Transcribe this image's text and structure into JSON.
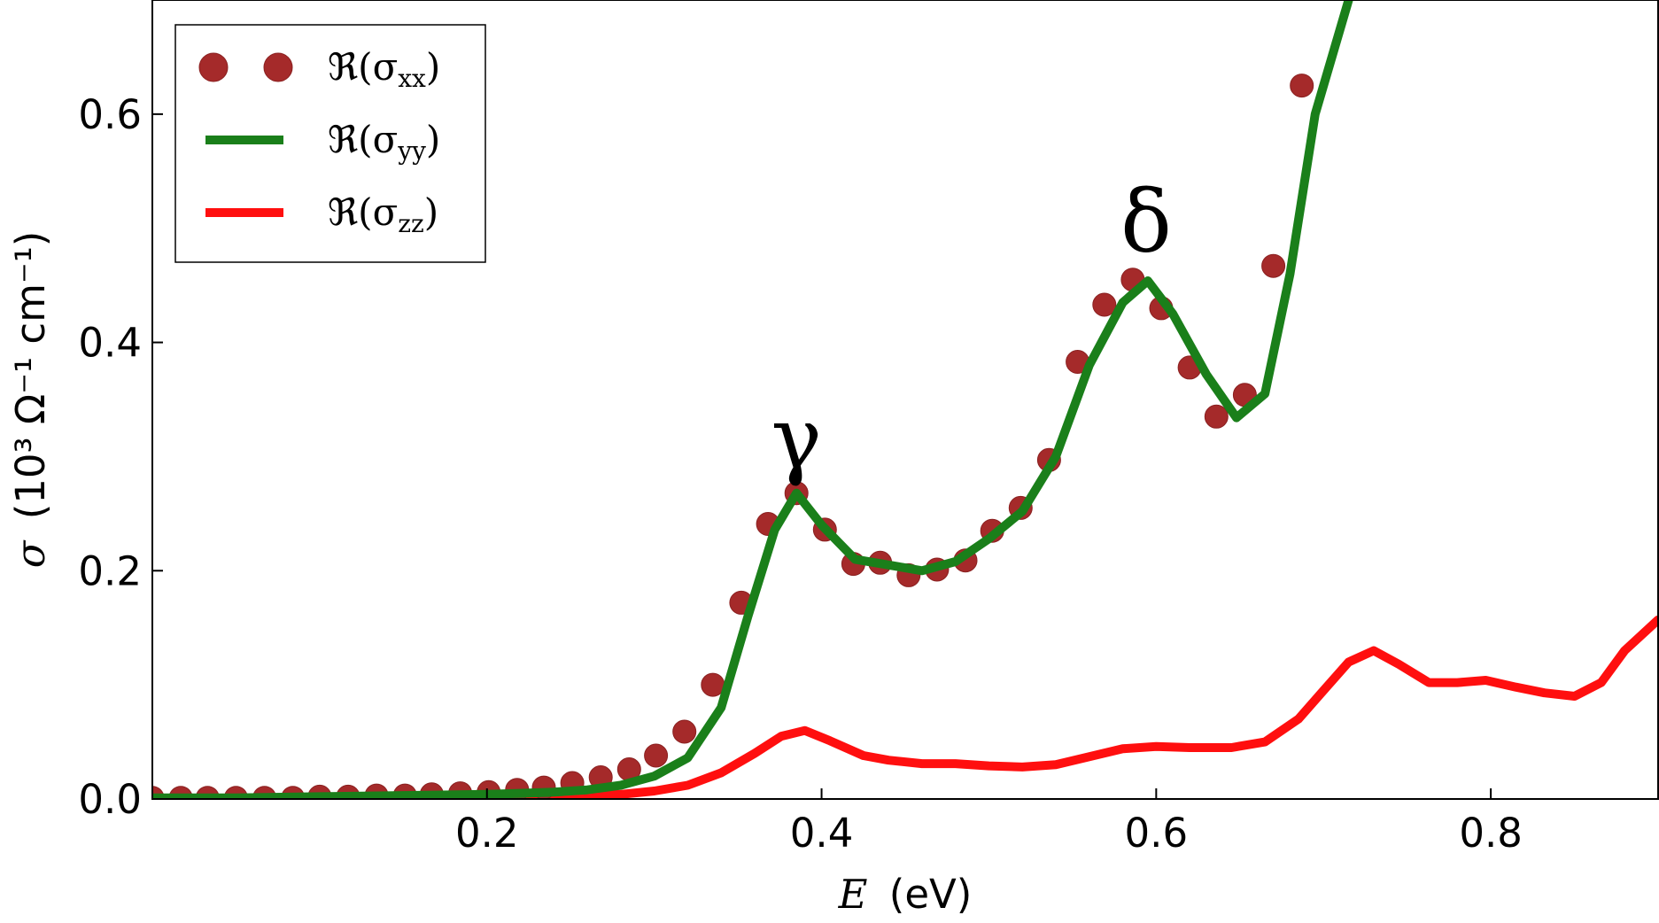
{
  "chart_data": {
    "type": "line",
    "title": "",
    "xlabel": {
      "symbol": "E",
      "unit": "(eV)"
    },
    "ylabel": {
      "symbol": "σ",
      "unit": "(10³ Ω⁻¹ cm⁻¹)"
    },
    "xlim": [
      0.0,
      0.9
    ],
    "ylim": [
      0.0,
      0.7
    ],
    "x_ticks": [
      {
        "value": 0.2,
        "label": "0.2"
      },
      {
        "value": 0.4,
        "label": "0.4"
      },
      {
        "value": 0.6,
        "label": "0.6"
      },
      {
        "value": 0.8,
        "label": "0.8"
      }
    ],
    "y_ticks": [
      {
        "value": 0.0,
        "label": "0.0"
      },
      {
        "value": 0.2,
        "label": "0.2"
      },
      {
        "value": 0.4,
        "label": "0.4"
      },
      {
        "value": 0.6,
        "label": "0.6"
      }
    ],
    "grid": false,
    "legend_position": "top-left",
    "series": [
      {
        "name": "ℜ(σxx)",
        "legend_main": "ℜ(σ",
        "legend_sub": "xx",
        "legend_close": ")",
        "style": "markers",
        "color": "#a52a2a",
        "x": [
          0.0,
          0.017,
          0.033,
          0.05,
          0.067,
          0.084,
          0.1,
          0.117,
          0.134,
          0.151,
          0.167,
          0.184,
          0.201,
          0.218,
          0.234,
          0.251,
          0.268,
          0.285,
          0.301,
          0.318,
          0.335,
          0.352,
          0.368,
          0.385,
          0.402,
          0.419,
          0.435,
          0.452,
          0.469,
          0.486,
          0.502,
          0.519,
          0.536,
          0.553,
          0.569,
          0.586,
          0.603,
          0.62,
          0.636,
          0.653,
          0.67,
          0.687
        ],
        "y": [
          0.001,
          0.001,
          0.001,
          0.001,
          0.001,
          0.001,
          0.002,
          0.002,
          0.003,
          0.003,
          0.004,
          0.005,
          0.006,
          0.008,
          0.01,
          0.014,
          0.019,
          0.026,
          0.038,
          0.059,
          0.1,
          0.172,
          0.241,
          0.268,
          0.236,
          0.206,
          0.207,
          0.196,
          0.201,
          0.209,
          0.235,
          0.255,
          0.297,
          0.383,
          0.433,
          0.455,
          0.43,
          0.378,
          0.335,
          0.354,
          0.467,
          0.625
        ]
      },
      {
        "name": "ℜ(σyy)",
        "legend_main": "ℜ(σ",
        "legend_sub": "yy",
        "legend_close": ")",
        "style": "line",
        "color": "#1a7f1a",
        "x": [
          0.0,
          0.05,
          0.1,
          0.15,
          0.2,
          0.22,
          0.24,
          0.26,
          0.28,
          0.3,
          0.32,
          0.34,
          0.356,
          0.372,
          0.385,
          0.4,
          0.42,
          0.44,
          0.46,
          0.48,
          0.5,
          0.52,
          0.54,
          0.56,
          0.58,
          0.595,
          0.61,
          0.63,
          0.648,
          0.665,
          0.68,
          0.695,
          0.715
        ],
        "y": [
          0.001,
          0.001,
          0.002,
          0.003,
          0.004,
          0.005,
          0.006,
          0.008,
          0.012,
          0.02,
          0.036,
          0.08,
          0.16,
          0.236,
          0.268,
          0.24,
          0.21,
          0.205,
          0.2,
          0.208,
          0.228,
          0.252,
          0.3,
          0.38,
          0.435,
          0.454,
          0.425,
          0.372,
          0.334,
          0.355,
          0.46,
          0.6,
          0.7
        ]
      },
      {
        "name": "ℜ(σzz)",
        "legend_main": "ℜ(σ",
        "legend_sub": "zz",
        "legend_close": ")",
        "style": "line",
        "color": "#ff0f0f",
        "x": [
          0.0,
          0.1,
          0.2,
          0.25,
          0.28,
          0.3,
          0.32,
          0.34,
          0.36,
          0.376,
          0.39,
          0.405,
          0.425,
          0.44,
          0.46,
          0.48,
          0.5,
          0.52,
          0.54,
          0.56,
          0.58,
          0.6,
          0.62,
          0.645,
          0.665,
          0.685,
          0.7,
          0.715,
          0.73,
          0.745,
          0.763,
          0.78,
          0.797,
          0.815,
          0.832,
          0.85,
          0.866,
          0.88,
          0.9
        ],
        "y": [
          0.0,
          0.0,
          0.001,
          0.002,
          0.004,
          0.007,
          0.012,
          0.023,
          0.04,
          0.055,
          0.06,
          0.051,
          0.038,
          0.034,
          0.031,
          0.031,
          0.029,
          0.028,
          0.03,
          0.037,
          0.044,
          0.046,
          0.045,
          0.045,
          0.05,
          0.07,
          0.095,
          0.12,
          0.13,
          0.118,
          0.102,
          0.102,
          0.104,
          0.098,
          0.093,
          0.09,
          0.102,
          0.13,
          0.157
        ]
      }
    ],
    "annotations": [
      {
        "text": "γ",
        "x": 0.385,
        "y": 0.29
      },
      {
        "text": "δ",
        "x": 0.594,
        "y": 0.48
      }
    ]
  }
}
